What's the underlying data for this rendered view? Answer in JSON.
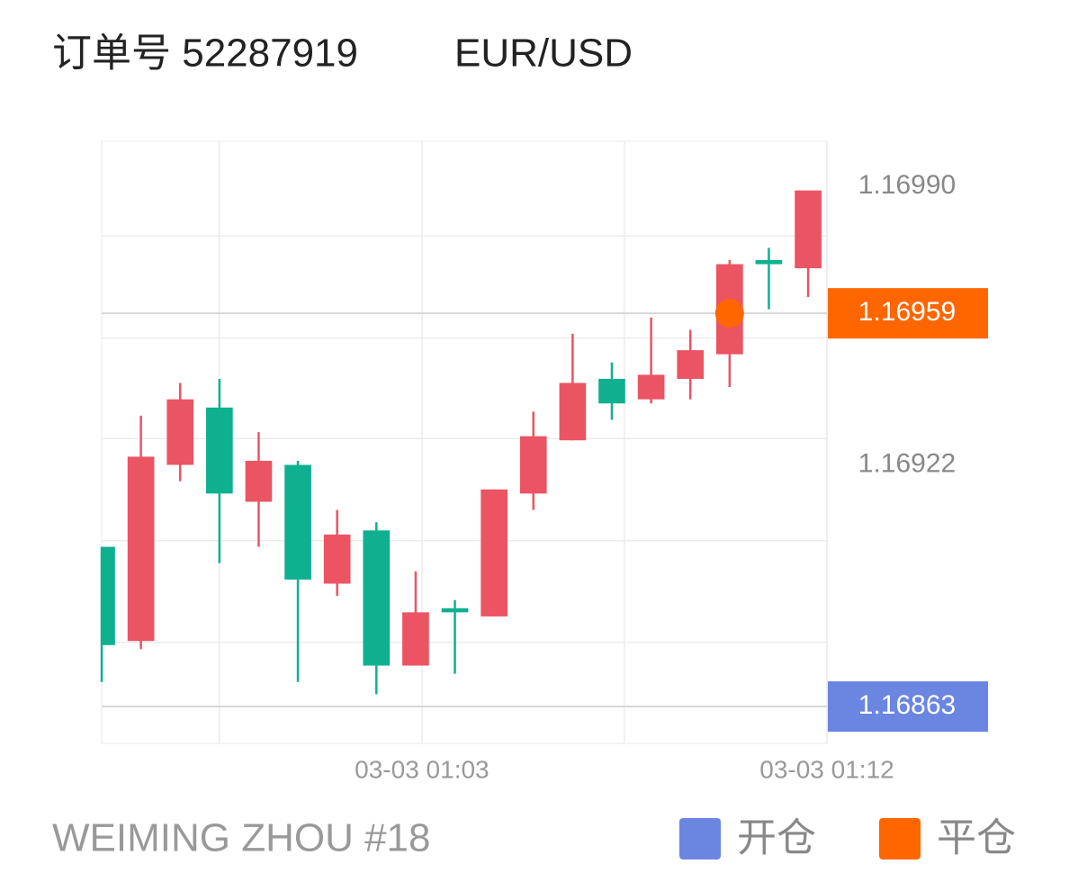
{
  "chart_data": {
    "type": "candlestick",
    "title": "订单号 52287919",
    "subtitle": "EUR/USD",
    "footer": "WEIMING ZHOU #18",
    "categories": [
      null,
      null,
      null,
      null,
      null,
      null,
      null,
      null,
      null,
      null,
      null,
      null,
      null,
      null,
      null,
      null,
      null,
      null,
      null
    ],
    "open": [
      1.16902,
      1.16879,
      1.16922,
      1.16936,
      1.16913,
      1.16922,
      1.16893,
      1.16906,
      1.16873,
      1.16887,
      1.16885,
      1.16915,
      1.16928,
      1.16943,
      1.16938,
      1.16943,
      1.16949,
      1.16972,
      1.1697
    ],
    "high": [
      1.16902,
      1.16934,
      1.16942,
      1.16943,
      1.1693,
      1.16923,
      1.16911,
      1.16908,
      1.16896,
      1.16889,
      1.16916,
      1.16935,
      1.16954,
      1.16947,
      1.16958,
      1.16955,
      1.16972,
      1.16975,
      1.16989
    ],
    "low": [
      1.16869,
      1.16877,
      1.16918,
      1.16898,
      1.16902,
      1.16869,
      1.1689,
      1.16866,
      1.16873,
      1.16871,
      1.16885,
      1.16911,
      1.16928,
      1.16933,
      1.16937,
      1.16938,
      1.16941,
      1.1696,
      1.16963
    ],
    "close": [
      1.16878,
      1.16924,
      1.16938,
      1.16915,
      1.16923,
      1.16894,
      1.16905,
      1.16873,
      1.16886,
      1.16886,
      1.16916,
      1.16929,
      1.16942,
      1.16937,
      1.16944,
      1.1695,
      1.16971,
      1.16971,
      1.16989
    ],
    "up_color": "#eb5463",
    "down_color": "#0fb08f",
    "xlim": [
      0,
      18.48
    ],
    "ylim": [
      1.16854,
      1.17001
    ],
    "yticks": [
      {
        "value": 1.1699,
        "label": "1.16990"
      },
      {
        "value": 1.16922,
        "label": "1.16922"
      }
    ],
    "ygrid": [
      1.169779,
      1.16953,
      1.169284,
      1.169035,
      1.168787
    ],
    "xticks": [
      {
        "value": 8.16,
        "label": "03-03 01:03"
      },
      {
        "value": 18.48,
        "label": "03-03 01:12"
      }
    ],
    "xgrid": [
      3,
      8.16,
      13.32,
      18.48
    ],
    "mark_lines": [
      {
        "name": "开仓",
        "value": 1.16863,
        "label": "1.16863",
        "color": "#6b86e0"
      },
      {
        "name": "平仓",
        "value": 1.16959,
        "label": "1.16959",
        "color": "#ff6600"
      }
    ],
    "mark_points": [
      {
        "x": 16,
        "value": 1.16959,
        "color": "#ff6600"
      }
    ]
  }
}
